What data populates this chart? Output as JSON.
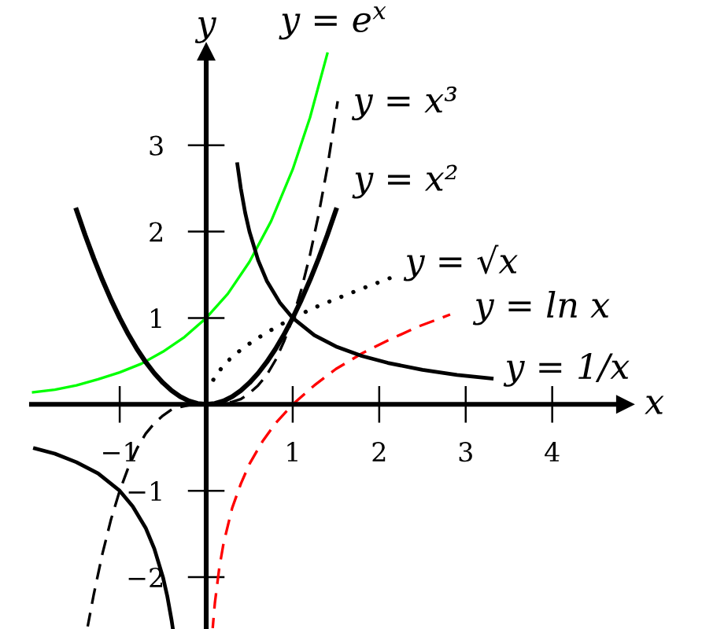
{
  "chart_data": {
    "type": "line",
    "xlabel": "x",
    "ylabel": "y",
    "xlim": [
      -2.02,
      4.84
    ],
    "ylim": [
      -2.6,
      4.08
    ],
    "xticks": [
      {
        "value": -1,
        "label": "−1"
      },
      1,
      2,
      3,
      4
    ],
    "yticks": [
      {
        "value": -2,
        "label": "−2"
      },
      {
        "value": -1,
        "label": "−1"
      },
      1,
      2,
      3
    ],
    "grid": false,
    "series": [
      {
        "name": "y = e$^{x}$",
        "color": "#00ff00",
        "line_style": "solid",
        "x": [
          -2.0,
          -1.75,
          -1.5,
          -1.25,
          -1.0,
          -0.75,
          -0.5,
          -0.25,
          0,
          0.25,
          0.5,
          0.75,
          1.0,
          1.2,
          1.4
        ],
        "values": [
          0.14,
          0.17,
          0.22,
          0.29,
          0.37,
          0.47,
          0.61,
          0.78,
          1,
          1.28,
          1.65,
          2.12,
          2.72,
          3.32,
          4.06
        ]
      },
      {
        "name": "y = x³",
        "color": "#000000",
        "line_style": "dashed",
        "x": [
          -1.37,
          -1.3,
          -1.2,
          -1.1,
          -1.0,
          -0.9,
          -0.8,
          -0.7,
          -0.6,
          -0.5,
          -0.4,
          -0.3,
          -0.2,
          -0.1,
          0,
          0.1,
          0.2,
          0.3,
          0.4,
          0.5,
          0.6,
          0.7,
          0.8,
          0.9,
          1.0,
          1.1,
          1.2,
          1.3,
          1.4,
          1.52
        ],
        "values": [
          -2.57,
          -2.2,
          -1.73,
          -1.33,
          -1,
          -0.73,
          -0.51,
          -0.34,
          -0.22,
          -0.13,
          -0.06,
          -0.03,
          -0.01,
          0,
          0,
          0,
          0.01,
          0.03,
          0.06,
          0.13,
          0.22,
          0.34,
          0.51,
          0.73,
          1,
          1.33,
          1.73,
          2.2,
          2.74,
          3.51
        ]
      },
      {
        "name": "y = x²",
        "color": "#000000",
        "line_style": "solid",
        "x": [
          -1.5,
          -1.4,
          -1.3,
          -1.2,
          -1.1,
          -1.0,
          -0.9,
          -0.8,
          -0.7,
          -0.6,
          -0.5,
          -0.4,
          -0.3,
          -0.2,
          -0.1,
          0,
          0.1,
          0.2,
          0.3,
          0.4,
          0.5,
          0.6,
          0.7,
          0.8,
          0.9,
          1.0,
          1.1,
          1.2,
          1.3,
          1.4,
          1.5
        ],
        "values": [
          2.25,
          1.96,
          1.69,
          1.44,
          1.21,
          1,
          0.81,
          0.64,
          0.49,
          0.36,
          0.25,
          0.16,
          0.09,
          0.04,
          0.01,
          0,
          0.01,
          0.04,
          0.09,
          0.16,
          0.25,
          0.36,
          0.49,
          0.64,
          0.81,
          1,
          1.21,
          1.44,
          1.69,
          1.96,
          2.25
        ]
      },
      {
        "name": "y = √x",
        "color": "#000000",
        "line_style": "dotted",
        "x": [
          0.04,
          0.1,
          0.2,
          0.3,
          0.45,
          0.6,
          0.8,
          1.0,
          1.25,
          1.5,
          1.8,
          2.12
        ],
        "values": [
          0.2,
          0.32,
          0.45,
          0.55,
          0.67,
          0.77,
          0.89,
          1,
          1.12,
          1.22,
          1.34,
          1.46
        ]
      },
      {
        "name": "y = ln x",
        "color": "#ff0000",
        "line_style": "dashed",
        "x": [
          0.075,
          0.1,
          0.15,
          0.2,
          0.3,
          0.4,
          0.5,
          0.65,
          0.8,
          1.0,
          1.25,
          1.5,
          1.8,
          2.1,
          2.45,
          2.82
        ],
        "values": [
          -2.59,
          -2.3,
          -1.9,
          -1.61,
          -1.2,
          -0.92,
          -0.69,
          -0.43,
          -0.22,
          0,
          0.22,
          0.41,
          0.59,
          0.74,
          0.9,
          1.04
        ]
      },
      {
        "name": "y = 1/x",
        "color": "#000000",
        "line_style": "solid",
        "x": [
          -1.98,
          -1.75,
          -1.5,
          -1.25,
          -1.0,
          -0.85,
          -0.7,
          -0.6,
          -0.5,
          -0.45,
          -0.4,
          -0.385,
          0,
          0.36,
          0.4,
          0.45,
          0.5,
          0.6,
          0.7,
          0.85,
          1.0,
          1.25,
          1.5,
          1.8,
          2.1,
          2.5,
          2.9,
          3.3
        ],
        "values": [
          -0.51,
          -0.57,
          -0.67,
          -0.8,
          -1,
          -1.18,
          -1.43,
          -1.67,
          -2,
          -2.22,
          -2.5,
          -2.6,
          null,
          2.78,
          2.5,
          2.22,
          2,
          1.67,
          1.43,
          1.18,
          1,
          0.8,
          0.67,
          0.56,
          0.48,
          0.4,
          0.34,
          0.3
        ]
      }
    ]
  }
}
